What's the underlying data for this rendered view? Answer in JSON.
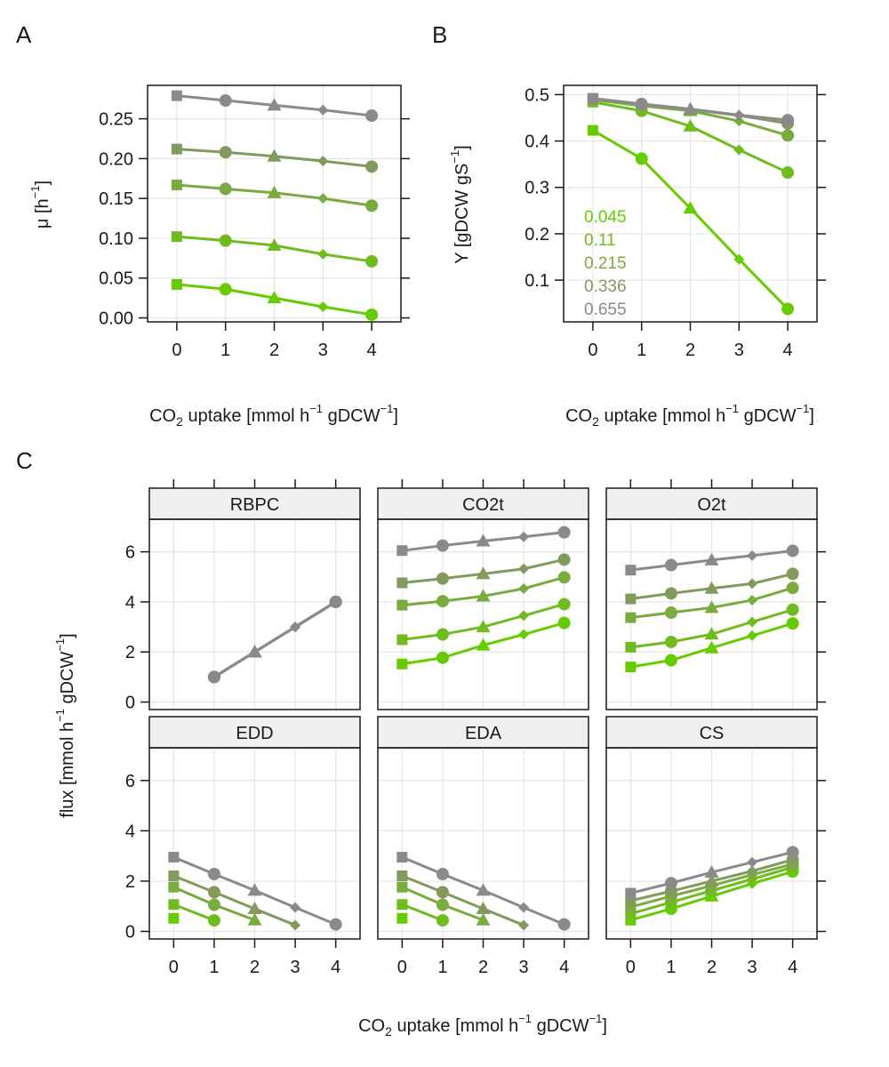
{
  "figure": {
    "panel_labels": [
      "A",
      "B",
      "C"
    ]
  },
  "colors": {
    "series": [
      "#66cc00",
      "#70bb1f",
      "#79ab3f",
      "#839a5e",
      "#8a8a8a"
    ],
    "grid": "#e5e5e5",
    "strip_bg": "#f0f0f0"
  },
  "shared": {
    "x": [
      0,
      1,
      2,
      3,
      4
    ],
    "markers": [
      "square",
      "circle",
      "triangle",
      "diamond",
      "circle"
    ],
    "xlabel": {
      "pre": "CO",
      "sub": "2",
      "mid1": " uptake [mmol h",
      "sup1": "−1",
      "mid2": " gDCW",
      "sup2": "−1",
      "post": "]"
    }
  },
  "chart_data": [
    {
      "panel": "A",
      "type": "line",
      "ylabel": {
        "pre": "μ [h",
        "sup": "−1",
        "post": "]"
      },
      "ylim": [
        -0.005,
        0.292
      ],
      "yticks": [
        0.0,
        0.05,
        0.1,
        0.15,
        0.2,
        0.25
      ],
      "ytick_labels": [
        "0.00",
        "0.05",
        "0.10",
        "0.15",
        "0.20",
        "0.25"
      ],
      "xticks": [
        0,
        1,
        2,
        3,
        4
      ],
      "xlim": [
        -0.6,
        4.6
      ],
      "grid": true,
      "series": [
        {
          "values": [
            0.042,
            0.036,
            0.025,
            0.014,
            0.004
          ]
        },
        {
          "values": [
            0.102,
            0.097,
            0.091,
            0.08,
            0.071
          ]
        },
        {
          "values": [
            0.167,
            0.162,
            0.157,
            0.15,
            0.141
          ]
        },
        {
          "values": [
            0.212,
            0.208,
            0.203,
            0.197,
            0.19
          ]
        },
        {
          "values": [
            0.279,
            0.273,
            0.267,
            0.261,
            0.254
          ]
        }
      ]
    },
    {
      "panel": "B",
      "type": "line",
      "ylabel": {
        "pre": "Y [gDCW gS",
        "sup": "−1",
        "post": "]"
      },
      "ylim": [
        0.01,
        0.52
      ],
      "yticks": [
        0.1,
        0.2,
        0.3,
        0.4,
        0.5
      ],
      "ytick_labels": [
        "0.1",
        "0.2",
        "0.3",
        "0.4",
        "0.5"
      ],
      "xticks": [
        0,
        1,
        2,
        3,
        4
      ],
      "xlim": [
        -0.6,
        4.6
      ],
      "grid": true,
      "legend_location": "left",
      "legend_entries": [
        "0.045",
        "0.11",
        "0.215",
        "0.336",
        "0.655"
      ],
      "series": [
        {
          "values": [
            0.423,
            0.362,
            0.255,
            0.145,
            0.038
          ]
        },
        {
          "values": [
            0.484,
            0.465,
            0.432,
            0.381,
            0.332
          ]
        },
        {
          "values": [
            0.489,
            0.476,
            0.465,
            0.443,
            0.412
          ]
        },
        {
          "values": [
            0.491,
            0.479,
            0.468,
            0.455,
            0.438
          ]
        },
        {
          "values": [
            0.492,
            0.48,
            0.469,
            0.456,
            0.445
          ]
        }
      ]
    },
    {
      "panel": "C",
      "type": "line",
      "facets": [
        "RBPC",
        "CO2t",
        "O2t",
        "EDD",
        "EDA",
        "CS"
      ],
      "ylabel": {
        "pre": "flux [mmol h",
        "sup1": "−1",
        "mid": " gDCW",
        "sup2": "−1",
        "post": "]"
      },
      "ylim": [
        -0.3,
        7.3
      ],
      "yticks": [
        0,
        2,
        4,
        6
      ],
      "ytick_labels": [
        "0",
        "2",
        "4",
        "6"
      ],
      "xticks": [
        0,
        1,
        2,
        3,
        4
      ],
      "xlim": [
        -0.6,
        4.6
      ],
      "grid": true,
      "panels": [
        {
          "facet": "RBPC",
          "series": [
            {
              "values": [
                null,
                1,
                2,
                3,
                4
              ]
            },
            {
              "values": [
                null,
                1,
                2,
                3,
                4
              ]
            },
            {
              "values": [
                null,
                1,
                2,
                3,
                4
              ]
            },
            {
              "values": [
                null,
                1,
                2,
                3,
                4
              ]
            },
            {
              "values": [
                null,
                1,
                2,
                3,
                4
              ]
            }
          ]
        },
        {
          "facet": "CO2t",
          "series": [
            {
              "values": [
                1.52,
                1.77,
                2.27,
                2.7,
                3.16
              ]
            },
            {
              "values": [
                2.49,
                2.7,
                3.0,
                3.45,
                3.91
              ]
            },
            {
              "values": [
                3.87,
                4.03,
                4.23,
                4.53,
                4.98
              ]
            },
            {
              "values": [
                4.76,
                4.93,
                5.12,
                5.32,
                5.69
              ]
            },
            {
              "values": [
                6.05,
                6.25,
                6.43,
                6.6,
                6.78
              ]
            }
          ]
        },
        {
          "facet": "O2t",
          "series": [
            {
              "values": [
                1.4,
                1.67,
                2.16,
                2.65,
                3.14
              ]
            },
            {
              "values": [
                2.19,
                2.4,
                2.71,
                3.2,
                3.69
              ]
            },
            {
              "values": [
                3.37,
                3.57,
                3.77,
                4.07,
                4.56
              ]
            },
            {
              "values": [
                4.12,
                4.34,
                4.54,
                4.73,
                5.12
              ]
            },
            {
              "values": [
                5.27,
                5.47,
                5.67,
                5.85,
                6.04
              ]
            }
          ]
        },
        {
          "facet": "EDD",
          "series": [
            {
              "values": [
                0.52,
                null,
                null,
                null,
                null
              ]
            },
            {
              "values": [
                1.07,
                0.44,
                null,
                null,
                null
              ]
            },
            {
              "values": [
                1.76,
                1.06,
                0.45,
                null,
                null
              ]
            },
            {
              "values": [
                2.21,
                1.56,
                0.9,
                0.25,
                null
              ]
            },
            {
              "values": [
                2.95,
                2.28,
                1.63,
                0.95,
                0.28
              ]
            }
          ]
        },
        {
          "facet": "EDA",
          "series": [
            {
              "values": [
                0.52,
                null,
                null,
                null,
                null
              ]
            },
            {
              "values": [
                1.07,
                0.44,
                null,
                null,
                null
              ]
            },
            {
              "values": [
                1.76,
                1.06,
                0.45,
                null,
                null
              ]
            },
            {
              "values": [
                2.21,
                1.56,
                0.9,
                0.25,
                null
              ]
            },
            {
              "values": [
                2.95,
                2.28,
                1.63,
                0.95,
                0.28
              ]
            }
          ]
        },
        {
          "facet": "CS",
          "series": [
            {
              "values": [
                0.45,
                0.9,
                1.4,
                1.9,
                2.38
              ]
            },
            {
              "values": [
                0.7,
                1.16,
                1.62,
                2.08,
                2.55
              ]
            },
            {
              "values": [
                0.97,
                1.4,
                1.82,
                2.25,
                2.68
              ]
            },
            {
              "values": [
                1.22,
                1.6,
                2.0,
                2.4,
                2.85
              ]
            },
            {
              "values": [
                1.52,
                1.92,
                2.35,
                2.75,
                3.15
              ]
            }
          ]
        }
      ]
    }
  ]
}
